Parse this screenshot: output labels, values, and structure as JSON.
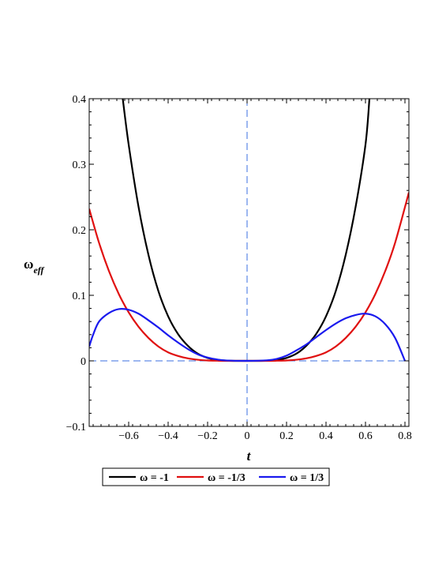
{
  "chart_data": {
    "type": "line",
    "xlabel": "t",
    "ylabel_main": "ω",
    "ylabel_sub": "eff",
    "xlim": [
      -0.8,
      0.82
    ],
    "ylim": [
      -0.1,
      0.4
    ],
    "x_ticks": [
      -0.6,
      -0.4,
      -0.2,
      0,
      0.2,
      0.4,
      0.6,
      0.8
    ],
    "x_tick_labels": [
      "−0.6",
      "−0.4",
      "−0.2",
      "0",
      "0.2",
      "0.4",
      "0.6",
      "0.8"
    ],
    "y_ticks": [
      -0.1,
      0,
      0.1,
      0.2,
      0.3,
      0.4
    ],
    "y_tick_labels": [
      "−0.1",
      "0",
      "0.1",
      "0.2",
      "0.3",
      "0.4"
    ],
    "reference_lines": {
      "color": "#3b6fe0",
      "style": "dashed",
      "x": 0,
      "y": 0
    },
    "legend_position": "bottom",
    "series": [
      {
        "name": "ω = -1",
        "color": "#000000",
        "points": [
          [
            -0.63,
            0.4
          ],
          [
            -0.6,
            0.33
          ],
          [
            -0.55,
            0.235
          ],
          [
            -0.5,
            0.162
          ],
          [
            -0.45,
            0.107
          ],
          [
            -0.4,
            0.068
          ],
          [
            -0.35,
            0.041
          ],
          [
            -0.3,
            0.023
          ],
          [
            -0.25,
            0.011
          ],
          [
            -0.2,
            0.0045
          ],
          [
            -0.15,
            0.0015
          ],
          [
            -0.1,
            0.0003
          ],
          [
            -0.05,
            0.0
          ],
          [
            0,
            0
          ],
          [
            0.05,
            0.0
          ],
          [
            0.1,
            0.0003
          ],
          [
            0.15,
            0.0015
          ],
          [
            0.2,
            0.0045
          ],
          [
            0.25,
            0.011
          ],
          [
            0.3,
            0.023
          ],
          [
            0.35,
            0.041
          ],
          [
            0.4,
            0.068
          ],
          [
            0.45,
            0.107
          ],
          [
            0.5,
            0.162
          ],
          [
            0.55,
            0.235
          ],
          [
            0.6,
            0.33
          ],
          [
            0.62,
            0.4
          ]
        ]
      },
      {
        "name": "ω = -1/3",
        "color": "#e01010",
        "points": [
          [
            -0.8,
            0.232
          ],
          [
            -0.75,
            0.18
          ],
          [
            -0.7,
            0.137
          ],
          [
            -0.65,
            0.102
          ],
          [
            -0.6,
            0.074
          ],
          [
            -0.55,
            0.052
          ],
          [
            -0.5,
            0.035
          ],
          [
            -0.45,
            0.022
          ],
          [
            -0.4,
            0.013
          ],
          [
            -0.35,
            0.0075
          ],
          [
            -0.3,
            0.0038
          ],
          [
            -0.25,
            0.0017
          ],
          [
            -0.2,
            0.0006
          ],
          [
            -0.15,
            0.0002
          ],
          [
            -0.1,
            0.0
          ],
          [
            0,
            0
          ],
          [
            0.1,
            0.0
          ],
          [
            0.15,
            0.0002
          ],
          [
            0.2,
            0.0006
          ],
          [
            0.25,
            0.0017
          ],
          [
            0.3,
            0.0038
          ],
          [
            0.35,
            0.0075
          ],
          [
            0.4,
            0.013
          ],
          [
            0.45,
            0.022
          ],
          [
            0.5,
            0.035
          ],
          [
            0.55,
            0.052
          ],
          [
            0.6,
            0.074
          ],
          [
            0.65,
            0.102
          ],
          [
            0.7,
            0.137
          ],
          [
            0.75,
            0.18
          ],
          [
            0.82,
            0.257
          ]
        ]
      },
      {
        "name": "ω = 1/3",
        "color": "#1a1aee",
        "points": [
          [
            -0.8,
            0.022
          ],
          [
            -0.78,
            0.04
          ],
          [
            -0.75,
            0.06
          ],
          [
            -0.7,
            0.073
          ],
          [
            -0.65,
            0.079
          ],
          [
            -0.6,
            0.078
          ],
          [
            -0.55,
            0.072
          ],
          [
            -0.5,
            0.062
          ],
          [
            -0.45,
            0.051
          ],
          [
            -0.4,
            0.039
          ],
          [
            -0.35,
            0.028
          ],
          [
            -0.3,
            0.018
          ],
          [
            -0.25,
            0.01
          ],
          [
            -0.2,
            0.005
          ],
          [
            -0.15,
            0.002
          ],
          [
            -0.1,
            0.0005
          ],
          [
            0,
            0
          ],
          [
            0.1,
            0.0008
          ],
          [
            0.15,
            0.003
          ],
          [
            0.2,
            0.008
          ],
          [
            0.25,
            0.016
          ],
          [
            0.3,
            0.025
          ],
          [
            0.35,
            0.036
          ],
          [
            0.4,
            0.047
          ],
          [
            0.45,
            0.057
          ],
          [
            0.5,
            0.065
          ],
          [
            0.55,
            0.07
          ],
          [
            0.6,
            0.072
          ],
          [
            0.65,
            0.068
          ],
          [
            0.7,
            0.056
          ],
          [
            0.75,
            0.035
          ],
          [
            0.8,
            0.0
          ]
        ]
      }
    ]
  }
}
